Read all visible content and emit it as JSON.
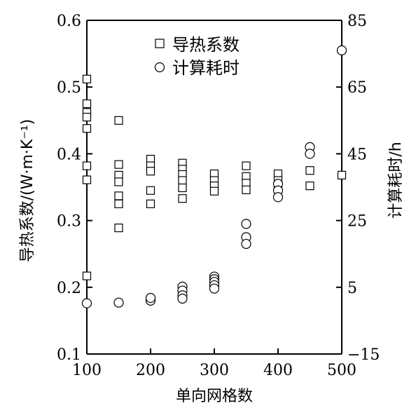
{
  "chart_data": {
    "type": "scatter",
    "xlabel": "单向网格数",
    "ylabel_left": "导热系数/(W·m·K⁻¹)",
    "ylabel_right": "计算耗时/h",
    "xlim": [
      100,
      500
    ],
    "ylim_left": [
      0.1,
      0.6
    ],
    "ylim_right": [
      -15,
      85
    ],
    "x_ticks": [
      100,
      200,
      300,
      400,
      500
    ],
    "y_ticks_left": [
      0.1,
      0.2,
      0.3,
      0.4,
      0.5,
      0.6
    ],
    "y_ticks_right": [
      -15,
      5,
      25,
      45,
      65,
      85
    ],
    "grid": false,
    "legend_position": "top-center",
    "series": [
      {
        "name": "导热系数",
        "marker": "square",
        "axis": "left",
        "points": [
          [
            100,
            0.512
          ],
          [
            100,
            0.475
          ],
          [
            100,
            0.462
          ],
          [
            100,
            0.455
          ],
          [
            100,
            0.438
          ],
          [
            100,
            0.382
          ],
          [
            100,
            0.361
          ],
          [
            100,
            0.217
          ],
          [
            150,
            0.45
          ],
          [
            150,
            0.384
          ],
          [
            150,
            0.368
          ],
          [
            150,
            0.358
          ],
          [
            150,
            0.337
          ],
          [
            150,
            0.325
          ],
          [
            150,
            0.289
          ],
          [
            200,
            0.392
          ],
          [
            200,
            0.382
          ],
          [
            200,
            0.374
          ],
          [
            200,
            0.345
          ],
          [
            200,
            0.325
          ],
          [
            250,
            0.386
          ],
          [
            250,
            0.377
          ],
          [
            250,
            0.369
          ],
          [
            250,
            0.36
          ],
          [
            250,
            0.349
          ],
          [
            250,
            0.333
          ],
          [
            300,
            0.37
          ],
          [
            300,
            0.36
          ],
          [
            300,
            0.352
          ],
          [
            300,
            0.344
          ],
          [
            350,
            0.382
          ],
          [
            350,
            0.366
          ],
          [
            350,
            0.356
          ],
          [
            350,
            0.346
          ],
          [
            400,
            0.37
          ],
          [
            400,
            0.36
          ],
          [
            400,
            0.347
          ],
          [
            450,
            0.375
          ],
          [
            450,
            0.352
          ],
          [
            500,
            0.368
          ]
        ]
      },
      {
        "name": "计算耗时",
        "marker": "circle",
        "axis": "right",
        "points": [
          [
            100,
            0.2
          ],
          [
            150,
            0.4
          ],
          [
            200,
            1.0
          ],
          [
            200,
            1.8
          ],
          [
            250,
            5.2
          ],
          [
            250,
            4.0
          ],
          [
            250,
            2.6
          ],
          [
            250,
            1.6
          ],
          [
            300,
            8.2
          ],
          [
            300,
            7.4
          ],
          [
            300,
            6.6
          ],
          [
            300,
            5.6
          ],
          [
            300,
            4.6
          ],
          [
            350,
            24.0
          ],
          [
            350,
            20.0
          ],
          [
            350,
            18.0
          ],
          [
            400,
            36.0
          ],
          [
            400,
            34.0
          ],
          [
            400,
            32.0
          ],
          [
            450,
            47.0
          ],
          [
            450,
            45.0
          ],
          [
            500,
            76.0
          ]
        ]
      }
    ]
  }
}
